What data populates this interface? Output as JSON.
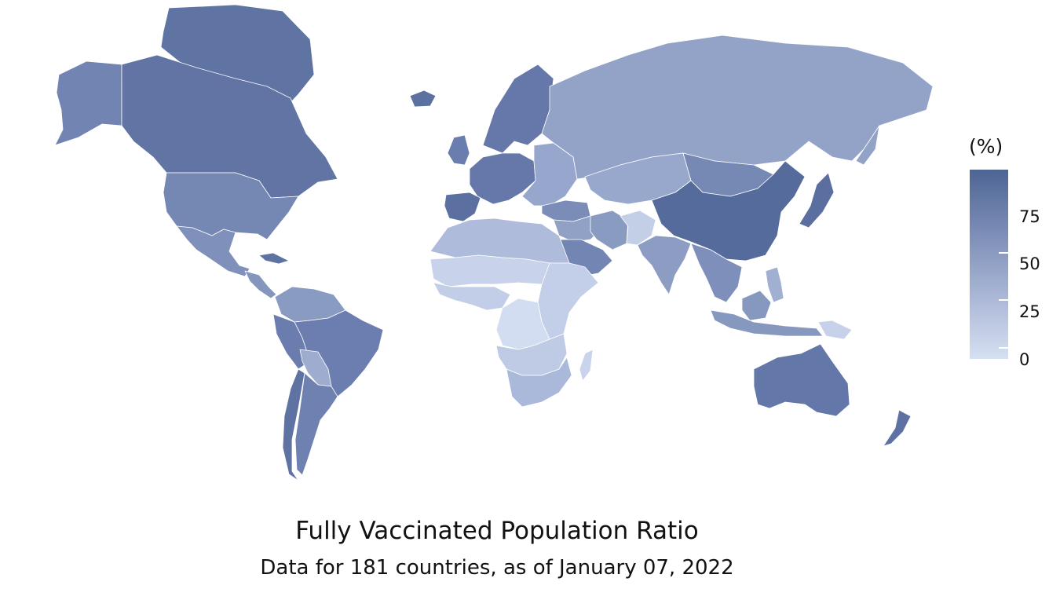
{
  "chart": {
    "title": "Fully Vaccinated Population Ratio",
    "subtitle": "Data for 181 countries, as of January 07, 2022"
  },
  "legend": {
    "title": "(%)",
    "ticks": [
      "0",
      "25",
      "50",
      "75"
    ],
    "colors": {
      "high": "#4d6594",
      "mid": "#8a9bc4",
      "low": "#d6e0f3"
    }
  },
  "regions": [
    {
      "id": "greenland",
      "fill": "#5f74a3"
    },
    {
      "id": "canada",
      "fill": "#6174a3"
    },
    {
      "id": "alaska",
      "fill": "#7284b1"
    },
    {
      "id": "usa",
      "fill": "#7587b3"
    },
    {
      "id": "mexico",
      "fill": "#7f90ba"
    },
    {
      "id": "central-america",
      "fill": "#8596bd"
    },
    {
      "id": "cuba",
      "fill": "#5e73a2"
    },
    {
      "id": "colombia-venezuela",
      "fill": "#8a9bc2"
    },
    {
      "id": "brazil",
      "fill": "#6c7eaf"
    },
    {
      "id": "peru",
      "fill": "#6b7dae"
    },
    {
      "id": "bolivia",
      "fill": "#9eacd0"
    },
    {
      "id": "chile",
      "fill": "#5e73a2"
    },
    {
      "id": "argentina",
      "fill": "#6f81b0"
    },
    {
      "id": "iceland",
      "fill": "#5b71a0"
    },
    {
      "id": "uk",
      "fill": "#6a7daf"
    },
    {
      "id": "scandinavia",
      "fill": "#6578a9"
    },
    {
      "id": "western-europe",
      "fill": "#6678a9"
    },
    {
      "id": "iberia",
      "fill": "#5b70a0"
    },
    {
      "id": "eastern-europe",
      "fill": "#96a6cc"
    },
    {
      "id": "russia",
      "fill": "#93a3c8"
    },
    {
      "id": "kazakhstan",
      "fill": "#98a8cc"
    },
    {
      "id": "mongolia",
      "fill": "#7688b4"
    },
    {
      "id": "china",
      "fill": "#556b9b"
    },
    {
      "id": "japan-korea",
      "fill": "#5a6f9f"
    },
    {
      "id": "turkey",
      "fill": "#7a8cb7"
    },
    {
      "id": "middle-east",
      "fill": "#91a1c6"
    },
    {
      "id": "iran",
      "fill": "#8a9bc2"
    },
    {
      "id": "arabia",
      "fill": "#7386b3"
    },
    {
      "id": "afghanistan",
      "fill": "#c3cee7"
    },
    {
      "id": "india",
      "fill": "#8c9cc3"
    },
    {
      "id": "southeast-asia",
      "fill": "#7d8fba"
    },
    {
      "id": "indonesia",
      "fill": "#8798bf"
    },
    {
      "id": "philippines",
      "fill": "#a1afd1"
    },
    {
      "id": "papua",
      "fill": "#c7d2ea"
    },
    {
      "id": "north-africa",
      "fill": "#aebbdb"
    },
    {
      "id": "sahel",
      "fill": "#c8d3eb"
    },
    {
      "id": "west-africa",
      "fill": "#c2cde7"
    },
    {
      "id": "central-africa",
      "fill": "#d3ddf1"
    },
    {
      "id": "east-africa",
      "fill": "#c3cee8"
    },
    {
      "id": "angola-zambia",
      "fill": "#bfcae5"
    },
    {
      "id": "southern-africa",
      "fill": "#aab8d9"
    },
    {
      "id": "madagascar",
      "fill": "#c9d4ec"
    },
    {
      "id": "australia",
      "fill": "#6477a9"
    },
    {
      "id": "new-zealand",
      "fill": "#5d72a2"
    }
  ]
}
